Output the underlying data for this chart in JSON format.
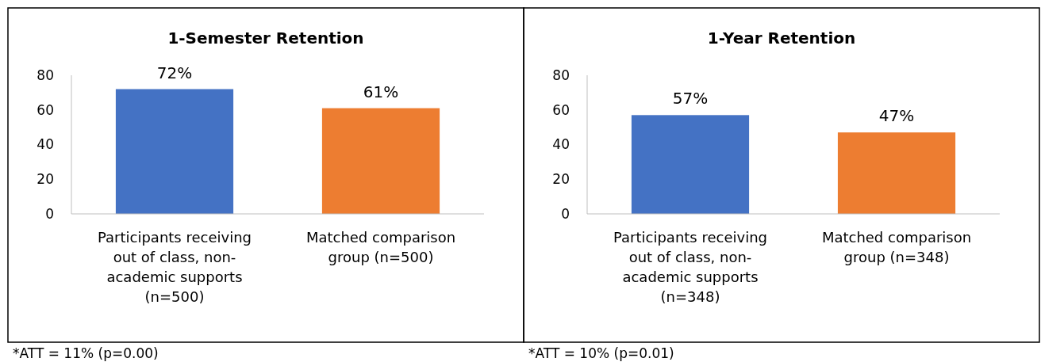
{
  "chart_data": [
    {
      "type": "bar",
      "title": "1-Semester Retention",
      "categories": [
        "Participants receiving out of class, non-academic supports (n=500)",
        "Matched comparison group (n=500)"
      ],
      "values": [
        72,
        61
      ],
      "colors": [
        "#4472c4",
        "#ed7d31"
      ],
      "value_labels": [
        "72%",
        "61%"
      ],
      "ylim": [
        0,
        80
      ],
      "yticks": [
        0,
        20,
        40,
        60,
        80
      ],
      "grid": false,
      "annotations": [
        "*ATT = 11% (p=0.00)"
      ]
    },
    {
      "type": "bar",
      "title": "1-Year Retention",
      "categories": [
        "Participants receiving out of class, non-academic supports (n=348)",
        "Matched comparison group (n=348)"
      ],
      "values": [
        57,
        47
      ],
      "colors": [
        "#4472c4",
        "#ed7d31"
      ],
      "value_labels": [
        "57%",
        "47%"
      ],
      "ylim": [
        0,
        80
      ],
      "yticks": [
        0,
        20,
        40,
        60,
        80
      ],
      "grid": false,
      "annotations": [
        "*ATT = 10% (p=0.01)"
      ]
    }
  ]
}
